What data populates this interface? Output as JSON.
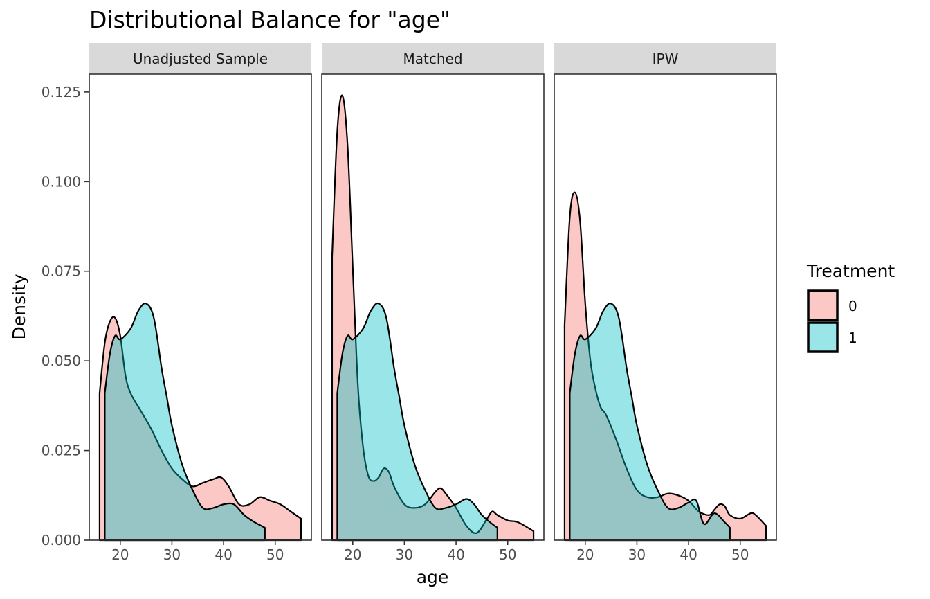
{
  "chart_data": {
    "type": "area",
    "title": "Distributional Balance for \"age\"",
    "xlabel": "age",
    "ylabel": "Density",
    "xlim": [
      14,
      57
    ],
    "ylim": [
      0,
      0.13
    ],
    "x_ticks": [
      20,
      30,
      40,
      50
    ],
    "y_ticks": [
      0.0,
      0.025,
      0.05,
      0.075,
      0.1,
      0.125
    ],
    "y_tick_labels": [
      "0.000",
      "0.025",
      "0.050",
      "0.075",
      "0.100",
      "0.125"
    ],
    "grid": false,
    "legend": {
      "title": "Treatment",
      "position": "right",
      "entries": [
        {
          "label": "0",
          "color": "#F8766D"
        },
        {
          "label": "1",
          "color": "#00BFC4"
        }
      ]
    },
    "series_colors": {
      "0": "#F8766D",
      "1": "#00BFC4"
    },
    "panels": [
      {
        "name": "Unadjusted Sample",
        "series": [
          {
            "name": "0",
            "x": [
              16,
              17,
              18,
              19,
              20,
              21,
              22,
              24,
              26,
              28,
              30,
              32,
              34,
              36,
              38,
              39.5,
              41,
              43,
              45,
              47,
              49,
              51,
              53,
              55
            ],
            "y": [
              0.041,
              0.055,
              0.061,
              0.062,
              0.057,
              0.046,
              0.041,
              0.036,
              0.031,
              0.025,
              0.02,
              0.017,
              0.015,
              0.016,
              0.017,
              0.0175,
              0.015,
              0.01,
              0.01,
              0.012,
              0.011,
              0.01,
              0.008,
              0.006
            ]
          },
          {
            "name": "1",
            "x": [
              17,
              18,
              19,
              20,
              22,
              23.5,
              25,
              26.5,
              28,
              29,
              30,
              32,
              34,
              36,
              38,
              40,
              42,
              44,
              46,
              48
            ],
            "y": [
              0.041,
              0.052,
              0.057,
              0.056,
              0.059,
              0.064,
              0.066,
              0.062,
              0.048,
              0.04,
              0.032,
              0.021,
              0.014,
              0.009,
              0.009,
              0.01,
              0.01,
              0.007,
              0.005,
              0.0035
            ]
          }
        ]
      },
      {
        "name": "Matched",
        "series": [
          {
            "name": "0",
            "x": [
              16,
              17,
              18,
              19,
              20,
              21,
              22,
              23,
              24,
              25,
              26,
              27,
              28,
              30,
              32,
              34,
              36,
              37,
              38,
              40,
              42,
              44,
              46,
              47,
              48,
              50,
              52,
              55
            ],
            "y": [
              0.079,
              0.114,
              0.124,
              0.11,
              0.076,
              0.043,
              0.026,
              0.018,
              0.0165,
              0.0175,
              0.02,
              0.019,
              0.015,
              0.01,
              0.009,
              0.01,
              0.0135,
              0.0145,
              0.013,
              0.009,
              0.004,
              0.002,
              0.006,
              0.008,
              0.007,
              0.0055,
              0.005,
              0.0025
            ]
          },
          {
            "name": "1",
            "x": [
              17,
              18,
              19,
              20,
              22,
              23.5,
              25,
              26.5,
              28,
              29,
              30,
              32,
              34,
              36,
              38,
              40,
              42,
              43.5,
              45,
              47,
              48
            ],
            "y": [
              0.041,
              0.052,
              0.057,
              0.056,
              0.059,
              0.064,
              0.066,
              0.062,
              0.048,
              0.04,
              0.032,
              0.021,
              0.014,
              0.009,
              0.009,
              0.01,
              0.0115,
              0.01,
              0.007,
              0.0045,
              0.0035
            ]
          }
        ]
      },
      {
        "name": "IPW",
        "series": [
          {
            "name": "0",
            "x": [
              16,
              17,
              18,
              19,
              20,
              21,
              22,
              23,
              24,
              26,
              28,
              30,
              32,
              34,
              36,
              38,
              40,
              42,
              44,
              45,
              46,
              47,
              48,
              50,
              52,
              53,
              55
            ],
            "y": [
              0.06,
              0.09,
              0.097,
              0.089,
              0.066,
              0.05,
              0.042,
              0.037,
              0.035,
              0.028,
              0.02,
              0.014,
              0.012,
              0.012,
              0.013,
              0.0125,
              0.011,
              0.008,
              0.007,
              0.0085,
              0.01,
              0.0095,
              0.007,
              0.006,
              0.0075,
              0.007,
              0.004
            ]
          },
          {
            "name": "1",
            "x": [
              17,
              18,
              19,
              20,
              22,
              23.5,
              25,
              26.5,
              28,
              29,
              30,
              32,
              34,
              36,
              38,
              40,
              41.5,
              43,
              45,
              47,
              48
            ],
            "y": [
              0.041,
              0.052,
              0.057,
              0.056,
              0.059,
              0.064,
              0.066,
              0.062,
              0.048,
              0.04,
              0.032,
              0.021,
              0.014,
              0.009,
              0.009,
              0.0105,
              0.011,
              0.0045,
              0.0075,
              0.005,
              0.0035
            ]
          }
        ]
      }
    ]
  }
}
